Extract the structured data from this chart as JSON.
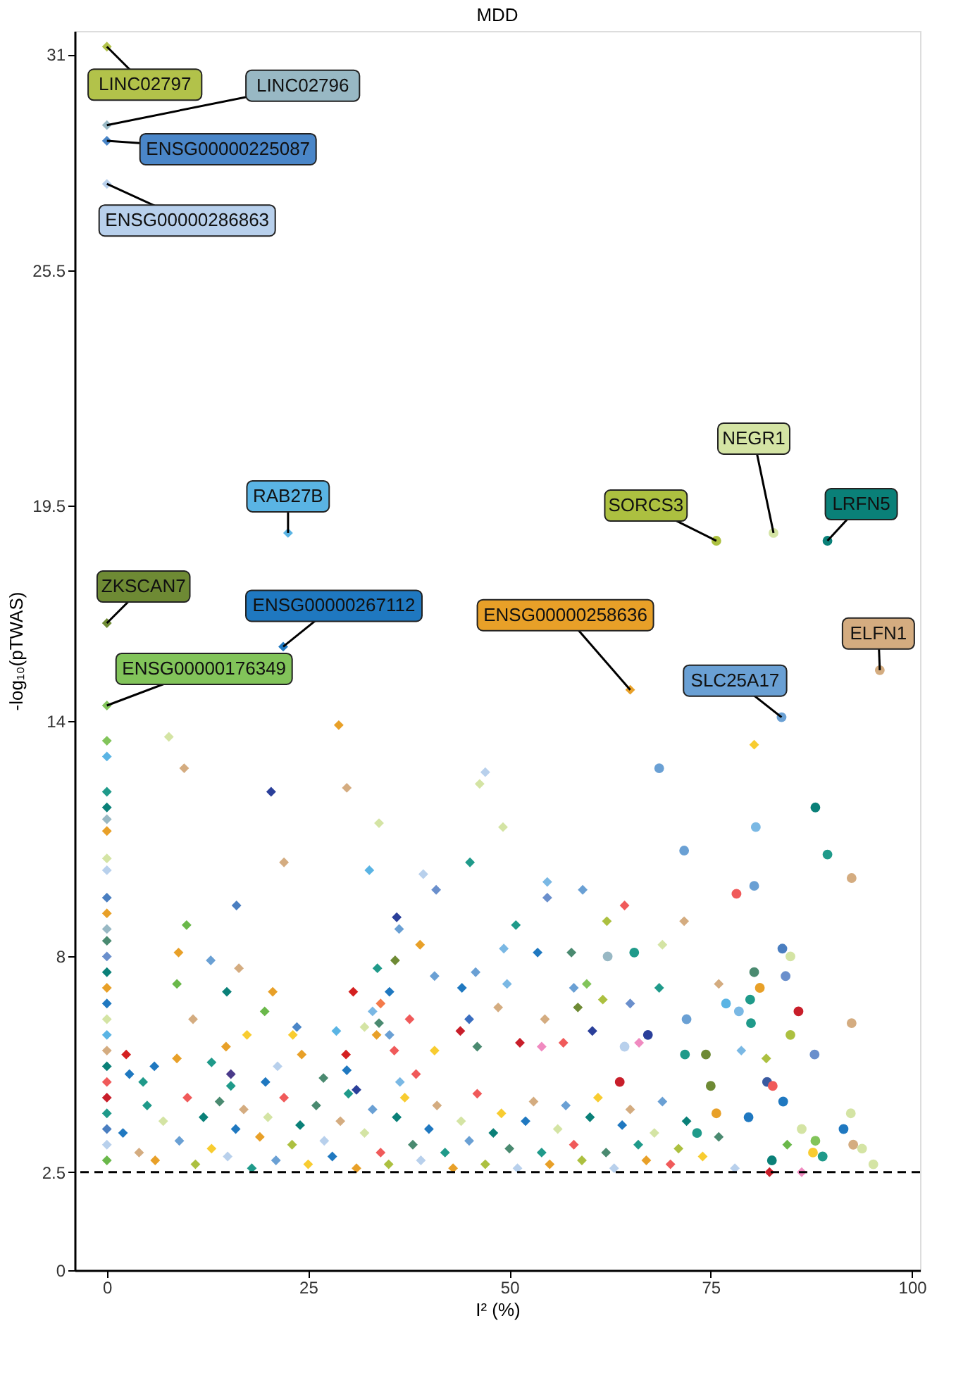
{
  "chart_data": {
    "type": "scatter",
    "title": "MDD",
    "xlabel": "I² (%)",
    "ylabel": "-log₁₀(pTWAS)",
    "xlim": [
      -4,
      101
    ],
    "xticks": [
      0,
      25,
      50,
      75,
      100
    ],
    "ylim": [
      0,
      31.6
    ],
    "yticks": [
      0,
      2.5,
      8,
      14,
      19.5,
      25.5,
      31
    ],
    "grid": false,
    "ref_lines": [
      {
        "axis": "y",
        "value": 2.5,
        "line_style": "dashed",
        "color": "#000000"
      }
    ],
    "annotations": [
      {
        "text": "LINC02797",
        "x": 0,
        "y": 31.2
      },
      {
        "text": "LINC02796",
        "x": 0,
        "y": 29.2
      },
      {
        "text": "ENSG00000225087",
        "x": 0,
        "y": 28.8
      },
      {
        "text": "ENSG00000286863",
        "x": 0,
        "y": 27.7
      },
      {
        "text": "RAB27B",
        "x": 22.5,
        "y": 18.8
      },
      {
        "text": "ZKSCAN7",
        "x": 0,
        "y": 16.5
      },
      {
        "text": "ENSG00000267112",
        "x": 21.9,
        "y": 15.9
      },
      {
        "text": "ENSG00000176349",
        "x": 0,
        "y": 14.4
      },
      {
        "text": "ENSG00000258636",
        "x": 65,
        "y": 14.8
      },
      {
        "text": "SLC25A17",
        "x": 83.8,
        "y": 14.1
      },
      {
        "text": "SORCS3",
        "x": 75.7,
        "y": 18.6
      },
      {
        "text": "NEGR1",
        "x": 82.8,
        "y": 18.8
      },
      {
        "text": "LRFN5",
        "x": 89.5,
        "y": 18.6
      },
      {
        "text": "ELFN1",
        "x": 96,
        "y": 15.3
      }
    ],
    "series": [
      {
        "marker": "diamond",
        "x": [
          0,
          0,
          0,
          0,
          22.5,
          0,
          21.9,
          0,
          65,
          0,
          0,
          0,
          0,
          0,
          0,
          0,
          0,
          0,
          0,
          0,
          0,
          0,
          0,
          0,
          0,
          0,
          0,
          0,
          0,
          0,
          0,
          0,
          0,
          0,
          0,
          7.7,
          28.8,
          9.6,
          20.4,
          29.8,
          47,
          46.3,
          33.8,
          22,
          32.6,
          39.3,
          40.9,
          45.1,
          16.1,
          36,
          36.3,
          9.9,
          8.9,
          12.9,
          16.4,
          38.9,
          35.8,
          33.6,
          40.7,
          45.8,
          8.7,
          14.9,
          20.6,
          30.6,
          35.1,
          44.1,
          10.7,
          19.6,
          34,
          33.8,
          33,
          37.6,
          45,
          43.9,
          23.6,
          17.4,
          23.1,
          32,
          28.5,
          33.5,
          35.1,
          2.4,
          14.8,
          8.7,
          24.2,
          29.7,
          35.7,
          40.7,
          46,
          2.8,
          5.9,
          13,
          15.4,
          21.2,
          29.8,
          38.4,
          4.5,
          19.7,
          26.9,
          31,
          15.4,
          36.4,
          80.4,
          49.2,
          54.7,
          54.7,
          59.1,
          64.3,
          50.8,
          62.1,
          71.7,
          49.3,
          53.5,
          57.7,
          69,
          49.7,
          58,
          59.6,
          68.6,
          76,
          61.6,
          48.6,
          54.4,
          58.5,
          65,
          60.3,
          51.3,
          56.7,
          66.1,
          78.8,
          81.9,
          54,
          84.5,
          86.3,
          82.3,
          2,
          4,
          5,
          6,
          7,
          9,
          10,
          11,
          12,
          13,
          14,
          15,
          16,
          17,
          18,
          19,
          20,
          21,
          22,
          23,
          24,
          25,
          26,
          27,
          28,
          29,
          30,
          31,
          32,
          33,
          34,
          35,
          36,
          37,
          38,
          39,
          40,
          41,
          42,
          43,
          44,
          45,
          46,
          47,
          48,
          49,
          50,
          51,
          52,
          53,
          54,
          55,
          56,
          57,
          58,
          59,
          60,
          61,
          62,
          63,
          64,
          65,
          66,
          67,
          68,
          69,
          70,
          71,
          72,
          74,
          76,
          78
        ],
        "values": [
          31.2,
          29.2,
          28.8,
          27.7,
          18.8,
          16.5,
          15.9,
          14.4,
          14.8,
          13.5,
          13.1,
          12.2,
          11.8,
          11.5,
          11.2,
          10.5,
          10.2,
          9.5,
          9.1,
          8.7,
          8.4,
          8,
          7.6,
          7.2,
          6.8,
          6.4,
          6,
          5.6,
          5.2,
          4.8,
          4.4,
          4,
          3.6,
          3.2,
          2.8,
          13.6,
          13.9,
          12.8,
          12.2,
          12.3,
          12.7,
          12.4,
          11.4,
          10.4,
          10.2,
          10.1,
          9.7,
          10.4,
          9.3,
          9,
          8.7,
          8.8,
          8.1,
          7.9,
          7.7,
          8.3,
          7.9,
          7.7,
          7.5,
          7.6,
          7.3,
          7.1,
          7.1,
          7.1,
          7.1,
          7.2,
          6.4,
          6.6,
          6.8,
          6.3,
          6.6,
          6.4,
          6.4,
          6.1,
          6.2,
          6,
          6,
          6.2,
          6.1,
          6,
          6,
          5.5,
          5.7,
          5.4,
          5.5,
          5.5,
          5.6,
          5.6,
          5.7,
          5,
          5.2,
          5.3,
          5,
          5.2,
          5.1,
          5,
          4.8,
          4.8,
          4.9,
          4.6,
          4.7,
          4.8,
          13.4,
          11.3,
          9.9,
          9.5,
          9.7,
          9.3,
          8.8,
          8.9,
          8.9,
          8.2,
          8.1,
          8.1,
          8.3,
          7.3,
          7.2,
          7.3,
          7.2,
          7.3,
          6.9,
          6.7,
          6.4,
          6.7,
          6.8,
          6.1,
          5.8,
          5.8,
          5.8,
          5.6,
          5.4,
          5.7,
          3.2,
          2.5,
          2.5,
          3.5,
          3,
          4.2,
          2.8,
          3.8,
          3.3,
          4.4,
          2.7,
          3.9,
          3.1,
          4.3,
          2.9,
          3.6,
          4.1,
          2.6,
          3.4,
          3.9,
          2.8,
          4.4,
          3.2,
          3.7,
          2.7,
          4.2,
          3.3,
          2.9,
          3.8,
          4.5,
          2.6,
          3.5,
          4.1,
          3,
          2.7,
          3.9,
          4.4,
          3.2,
          2.8,
          3.6,
          4.2,
          3,
          2.6,
          3.8,
          3.3,
          4.5,
          2.7,
          3.5,
          4,
          3.1,
          2.6,
          3.8,
          4.3,
          3,
          2.7,
          3.6,
          4.2,
          3.2,
          2.8,
          3.9,
          4.4,
          3,
          2.6,
          3.7,
          4.1,
          3.2,
          2.8,
          3.5,
          4.3,
          2.7,
          3.1,
          3.8,
          2.9,
          3.4,
          2.6
        ],
        "colors": [
          "#b2c24a",
          "#98b8c4",
          "#4a86c8",
          "#b8d0ec",
          "#5ab4e4",
          "#6e8a34",
          "#1f78c0",
          "#82c45a",
          "#e8a028",
          "#82c45a",
          "#5ab4e4",
          "#1f9a8a",
          "#0a8078",
          "#98b8c4",
          "#e8a028",
          "#d4e4a4",
          "#b8d0ec",
          "#4a7ec0",
          "#e8a028",
          "#98b8c4",
          "#4a8a70",
          "#6a8fcc",
          "#0a8078",
          "#e8a028",
          "#1f78c0",
          "#d4e4a4",
          "#5ab4e4",
          "#d4ac80",
          "#0a8078",
          "#f05a5a",
          "#c81e2a",
          "#1f9a8a",
          "#4a7ec0",
          "#b8d0ec",
          "#6ab84a",
          "#d4e4a4",
          "#e8a028",
          "#d4ac80",
          "#2a3f9a",
          "#d4ac80",
          "#b8d0ec",
          "#d4e4a4",
          "#d4e4a4",
          "#d4ac80",
          "#5ab4e4",
          "#b8d0ec",
          "#6a8fcc",
          "#1f9a8a",
          "#4a7ec0",
          "#2a3f9a",
          "#6aa0d4",
          "#6ab84a",
          "#e8a028",
          "#6aa0d4",
          "#d4ac80",
          "#e8a028",
          "#6e8a34",
          "#1f9a8a",
          "#6aa0d4",
          "#6aa0d4",
          "#6ab84a",
          "#0a8078",
          "#e8a028",
          "#d42020",
          "#1f78c0",
          "#1f78c0",
          "#d4ac80",
          "#6ab84a",
          "#f47a4a",
          "#4a8a70",
          "#7ab8e4",
          "#f05a5a",
          "#3a6ec0",
          "#c81e2a",
          "#4a86c8",
          "#f8cc30",
          "#f8cc30",
          "#d4e4a4",
          "#5ab4e4",
          "#e8a028",
          "#6aa0d4",
          "#d42020",
          "#e8a028",
          "#e8a028",
          "#e8a028",
          "#d42020",
          "#f05a5a",
          "#f8cc30",
          "#4a8a70",
          "#1f78c0",
          "#1f78c0",
          "#1f9a8a",
          "#4a3a8a",
          "#b8d0ec",
          "#1f78c0",
          "#f05a5a",
          "#1f9a8a",
          "#1f78c0",
          "#4a8a70",
          "#2a3f9a",
          "#1f9a8a",
          "#7ab8e4",
          "#f8cc30",
          "#d4e4a4",
          "#7ab8e4",
          "#6a8fcc",
          "#6aa0d4",
          "#f05a5a",
          "#1f9a8a",
          "#acc040",
          "#d4ac80",
          "#7ab8e4",
          "#1f78c0",
          "#4a8a70",
          "#d4e4a4",
          "#7ab8e4",
          "#6aa0d4",
          "#82c45a",
          "#1f9a8a",
          "#d4ac80",
          "#acc040",
          "#d4ac80",
          "#d4ac80",
          "#6e8a34",
          "#6a8fcc",
          "#2a3f9a",
          "#c81e2a",
          "#f05a5a",
          "#f08ac0",
          "#7ab8e4",
          "#acc040",
          "#f08ac0",
          "#6ab84a",
          "#f08ac0",
          "#c81e2a",
          "#1f78c0",
          "#d4ac80",
          "#1f9a8a",
          "#e8a028",
          "#d4e4a4",
          "#6aa0d4",
          "#f05a5a",
          "#acc040",
          "#0a8078",
          "#f8cc30",
          "#4a8a70",
          "#b8d0ec",
          "#1f78c0",
          "#d4ac80",
          "#1f9a8a",
          "#e8a028",
          "#d4e4a4",
          "#6aa0d4",
          "#f05a5a",
          "#acc040",
          "#0a8078",
          "#f8cc30",
          "#4a8a70",
          "#b8d0ec",
          "#1f78c0",
          "#d4ac80",
          "#1f9a8a",
          "#e8a028",
          "#d4e4a4",
          "#6aa0d4",
          "#f05a5a",
          "#acc040",
          "#0a8078",
          "#f8cc30",
          "#4a8a70",
          "#b8d0ec",
          "#1f78c0",
          "#d4ac80",
          "#1f9a8a",
          "#e8a028",
          "#d4e4a4",
          "#6aa0d4",
          "#f05a5a",
          "#acc040",
          "#0a8078",
          "#f8cc30",
          "#4a8a70",
          "#b8d0ec",
          "#1f78c0",
          "#d4ac80",
          "#1f9a8a",
          "#e8a028",
          "#d4e4a4",
          "#6aa0d4",
          "#f05a5a",
          "#acc040",
          "#0a8078",
          "#f8cc30",
          "#4a8a70",
          "#b8d0ec",
          "#1f78c0",
          "#d4ac80",
          "#1f9a8a",
          "#e8a028",
          "#d4e4a4",
          "#6aa0d4",
          "#f05a5a",
          "#acc040",
          "#0a8078",
          "#f8cc30",
          "#4a8a70",
          "#b8d0ec"
        ]
      },
      {
        "marker": "circle",
        "x": [
          83.8,
          75.7,
          82.8,
          89.5,
          96,
          68.6,
          88,
          80.6,
          89.5,
          71.7,
          92.5,
          80.4,
          78.2,
          62.2,
          65.5,
          83.9,
          84.9,
          80.4,
          81.1,
          84.3,
          79.9,
          76.9,
          78.5,
          85.9,
          92.5,
          80,
          72,
          84.9,
          67.2,
          64.3,
          74.4,
          71.8,
          87.9,
          63.7,
          75,
          82,
          82.7,
          84,
          79.7,
          92.4,
          91.5,
          86.3,
          88,
          92.7,
          93.8,
          88.9,
          95.2,
          82.6,
          87.7,
          73.3,
          75.7
        ],
        "values": [
          14.1,
          18.6,
          18.8,
          18.6,
          15.3,
          12.8,
          11.8,
          11.3,
          10.6,
          10.7,
          10,
          9.8,
          9.6,
          8,
          8.1,
          8.2,
          8,
          7.6,
          7.2,
          7.5,
          6.9,
          6.8,
          6.6,
          6.6,
          6.3,
          6.3,
          6.4,
          6,
          6,
          5.7,
          5.5,
          5.5,
          5.5,
          4.8,
          4.7,
          4.8,
          4.7,
          4.3,
          3.9,
          4,
          3.6,
          3.6,
          3.3,
          3.2,
          3.1,
          2.9,
          2.7,
          2.8,
          3,
          3.5,
          4
        ],
        "colors": [
          "#6aa0d4",
          "#acc040",
          "#d4e4a4",
          "#0a8078",
          "#d4ac80",
          "#6aa0d4",
          "#0a8078",
          "#7ab8e4",
          "#1f9a8a",
          "#6aa0d4",
          "#d4ac80",
          "#6aa0d4",
          "#f05a5a",
          "#98b8c4",
          "#1f9a8a",
          "#4a7ec0",
          "#d4e4a4",
          "#4a8a70",
          "#e8a028",
          "#6a8fcc",
          "#1f9a8a",
          "#5ab4e4",
          "#7ab8e4",
          "#c81e2a",
          "#d4ac80",
          "#1f9a8a",
          "#6aa0d4",
          "#acc040",
          "#2a3f9a",
          "#b8d0ec",
          "#6e8a34",
          "#1f9a8a",
          "#6a8fcc",
          "#c81e2a",
          "#6e8a34",
          "#3a5aa0",
          "#f05a5a",
          "#1f78c0",
          "#1f78c0",
          "#d4e4a4",
          "#1f78c0",
          "#d4e4a4",
          "#82c45a",
          "#d4ac80",
          "#d4e4a4",
          "#1f9a8a",
          "#d4e4a4",
          "#0a8078",
          "#f8cc30",
          "#1f9a8a",
          "#e8a028"
        ]
      }
    ]
  }
}
